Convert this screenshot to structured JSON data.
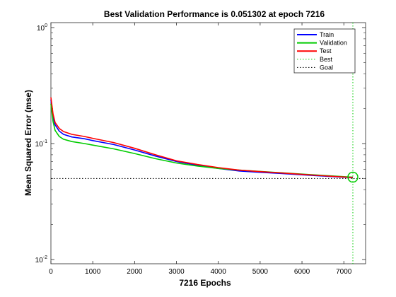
{
  "chart_data": {
    "type": "line",
    "title": "Best Validation Performance is 0.051302 at epoch 7216",
    "xlabel": "7216 Epochs",
    "ylabel": "Mean Squared Error  (mse)",
    "xlim": [
      0,
      7216
    ],
    "ylim": [
      0.01,
      1
    ],
    "yscale": "log",
    "x_ticks": [
      {
        "value": 0,
        "label": "0"
      },
      {
        "value": 1000,
        "label": "1000"
      },
      {
        "value": 2000,
        "label": "2000"
      },
      {
        "value": 3000,
        "label": "3000"
      },
      {
        "value": 4000,
        "label": "4000"
      },
      {
        "value": 5000,
        "label": "5000"
      },
      {
        "value": 6000,
        "label": "6000"
      },
      {
        "value": 7000,
        "label": "7000"
      }
    ],
    "y_ticks": [
      {
        "value": 0.01,
        "base": "10",
        "exp": "-2"
      },
      {
        "value": 0.1,
        "base": "10",
        "exp": "-1"
      },
      {
        "value": 1,
        "base": "10",
        "exp": "0"
      }
    ],
    "grid": false,
    "legend_position": "top-right",
    "series": [
      {
        "name": "Train",
        "color": "#0000ff",
        "style": "solid",
        "x": [
          0,
          50,
          100,
          200,
          300,
          500,
          800,
          1000,
          1500,
          2000,
          2500,
          3000,
          3500,
          4000,
          4500,
          5000,
          5500,
          6000,
          6500,
          7000,
          7216
        ],
        "y": [
          0.24,
          0.17,
          0.145,
          0.128,
          0.12,
          0.114,
          0.11,
          0.106,
          0.098,
          0.088,
          0.078,
          0.07,
          0.065,
          0.061,
          0.058,
          0.0565,
          0.0552,
          0.0538,
          0.0525,
          0.0512,
          0.0508
        ]
      },
      {
        "name": "Validation",
        "color": "#00cc00",
        "style": "solid",
        "x": [
          0,
          50,
          100,
          200,
          300,
          500,
          800,
          1000,
          1500,
          2000,
          2500,
          3000,
          3500,
          4000,
          4500,
          5000,
          5500,
          6000,
          6500,
          7000,
          7216
        ],
        "y": [
          0.22,
          0.155,
          0.13,
          0.115,
          0.109,
          0.104,
          0.1,
          0.097,
          0.09,
          0.082,
          0.074,
          0.068,
          0.064,
          0.061,
          0.059,
          0.0575,
          0.056,
          0.0545,
          0.0532,
          0.0518,
          0.051302
        ]
      },
      {
        "name": "Test",
        "color": "#ff0000",
        "style": "solid",
        "x": [
          0,
          50,
          100,
          200,
          300,
          500,
          800,
          1000,
          1500,
          2000,
          2500,
          3000,
          3500,
          4000,
          4500,
          5000,
          5500,
          6000,
          6500,
          7000,
          7216
        ],
        "y": [
          0.25,
          0.18,
          0.152,
          0.135,
          0.127,
          0.12,
          0.115,
          0.111,
          0.102,
          0.091,
          0.08,
          0.071,
          0.066,
          0.062,
          0.059,
          0.0573,
          0.0558,
          0.0542,
          0.0528,
          0.0515,
          0.051
        ]
      },
      {
        "name": "Best",
        "color": "#00cc00",
        "style": "dotted",
        "type": "vline",
        "x": 7216,
        "marker": {
          "x": 7216,
          "y": 0.051302
        }
      },
      {
        "name": "Goal",
        "color": "#000000",
        "style": "dotted",
        "type": "hline",
        "y": 0.05
      }
    ]
  }
}
